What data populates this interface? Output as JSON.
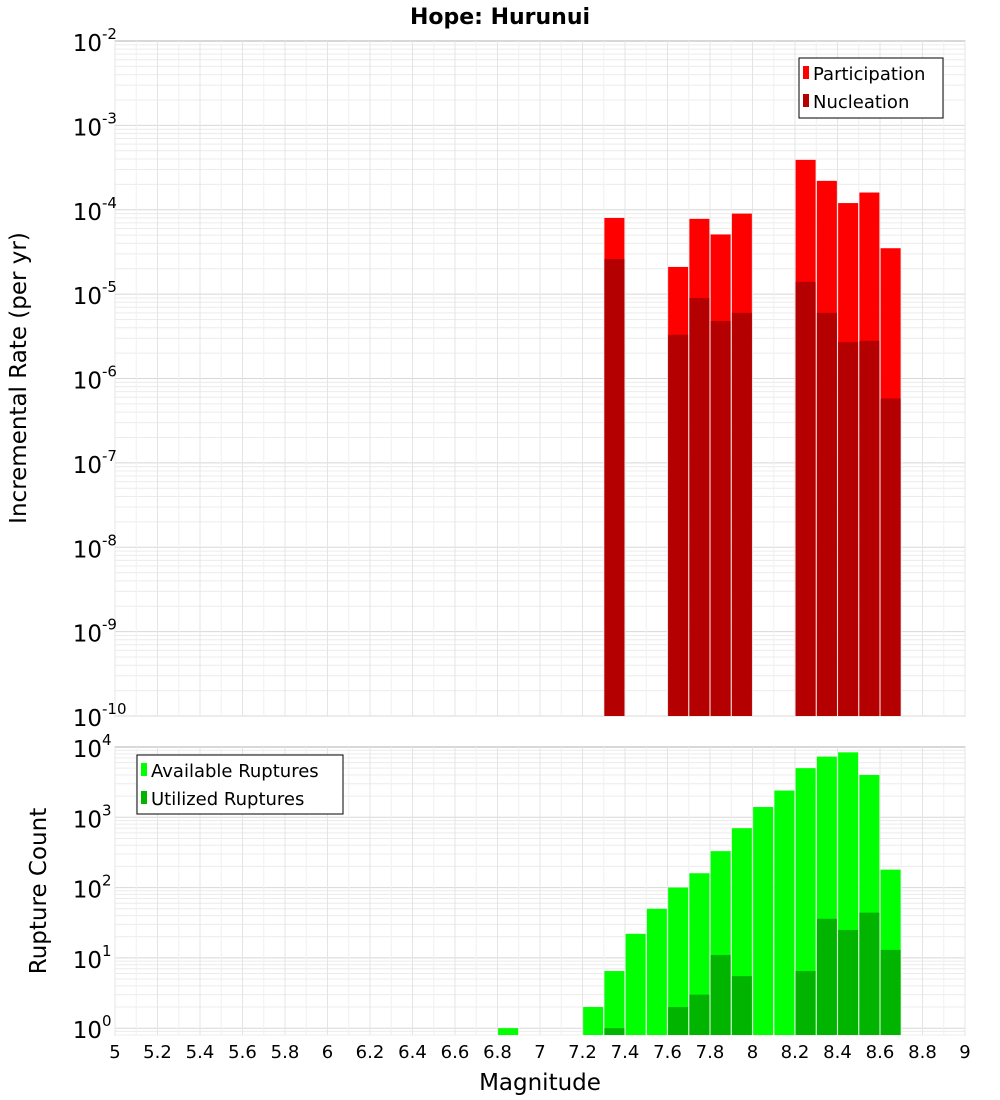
{
  "chart_data": [
    {
      "type": "bar",
      "title": "Hope: Hurunui",
      "xlabel": "",
      "ylabel": "Incremental Rate (per yr)",
      "yscale": "log",
      "ylim_exponents": [
        -10,
        -2
      ],
      "xlim": [
        5,
        9
      ],
      "grid": true,
      "legend_position": "top-right",
      "series": [
        {
          "name": "Participation",
          "color": "#ff0000",
          "x": [
            7.35,
            7.65,
            7.75,
            7.85,
            7.95,
            8.25,
            8.35,
            8.45,
            8.55,
            8.65
          ],
          "values": [
            8e-05,
            2.1e-05,
            7.8e-05,
            5.1e-05,
            9e-05,
            0.00039,
            0.00022,
            0.00012,
            0.00016,
            3.5e-05
          ]
        },
        {
          "name": "Nucleation",
          "color": "#b40000",
          "x": [
            7.35,
            7.65,
            7.75,
            7.85,
            7.95,
            8.25,
            8.35,
            8.45,
            8.55,
            8.65
          ],
          "values": [
            2.6e-05,
            3.3e-06,
            9e-06,
            4.8e-06,
            6e-06,
            1.4e-05,
            6e-06,
            2.7e-06,
            2.8e-06,
            5.8e-07
          ]
        }
      ],
      "y_ticks": [
        {
          "base": "10",
          "exp": "-2"
        },
        {
          "base": "10",
          "exp": "-3"
        },
        {
          "base": "10",
          "exp": "-4"
        },
        {
          "base": "10",
          "exp": "-5"
        },
        {
          "base": "10",
          "exp": "-6"
        },
        {
          "base": "10",
          "exp": "-7"
        },
        {
          "base": "10",
          "exp": "-8"
        },
        {
          "base": "10",
          "exp": "-9"
        },
        {
          "base": "10",
          "exp": "-10"
        }
      ]
    },
    {
      "type": "bar",
      "title": "",
      "xlabel": "Magnitude",
      "ylabel": "Rupture Count",
      "yscale": "log",
      "ylim": [
        0.8,
        10000
      ],
      "xlim": [
        5,
        9
      ],
      "grid": true,
      "legend_position": "top-left",
      "series": [
        {
          "name": "Available Ruptures",
          "color": "#00ff00",
          "x": [
            6.85,
            7.25,
            7.35,
            7.45,
            7.55,
            7.65,
            7.75,
            7.85,
            7.95,
            8.05,
            8.15,
            8.25,
            8.35,
            8.45,
            8.55,
            8.65
          ],
          "values": [
            1,
            2,
            6.5,
            22,
            50,
            100,
            160,
            330,
            700,
            1400,
            2400,
            5000,
            7300,
            8400,
            4000,
            180
          ]
        },
        {
          "name": "Utilized Ruptures",
          "color": "#00b400",
          "x": [
            7.35,
            7.65,
            7.75,
            7.85,
            7.95,
            8.25,
            8.35,
            8.45,
            8.55,
            8.65
          ],
          "values": [
            1,
            2,
            3,
            11,
            5.5,
            6.5,
            36,
            25,
            44,
            13
          ]
        }
      ],
      "y_ticks": [
        {
          "base": "10",
          "exp": "4"
        },
        {
          "base": "10",
          "exp": "3"
        },
        {
          "base": "10",
          "exp": "2"
        },
        {
          "base": "10",
          "exp": "1"
        },
        {
          "base": "10",
          "exp": "0"
        }
      ],
      "x_ticks": [
        "5",
        "5.2",
        "5.4",
        "5.6",
        "5.8",
        "6",
        "6.2",
        "6.4",
        "6.6",
        "6.8",
        "7",
        "7.2",
        "7.4",
        "7.6",
        "7.8",
        "8",
        "8.2",
        "8.4",
        "8.6",
        "8.8",
        "9"
      ]
    }
  ]
}
